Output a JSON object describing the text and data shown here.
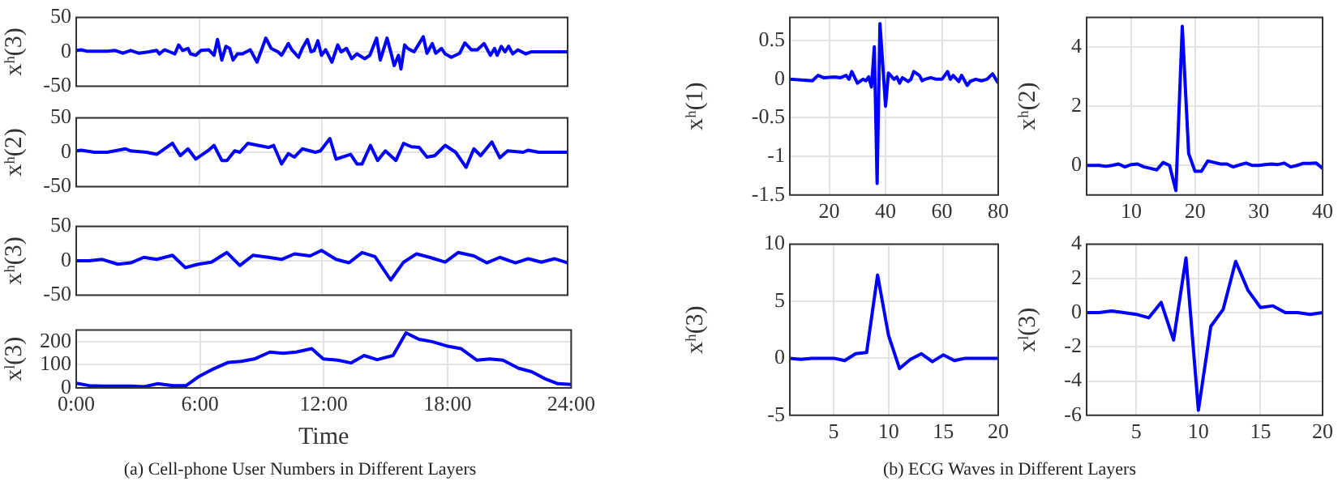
{
  "chart_data": [
    {
      "type": "line",
      "ylabel": "xʰ(3)",
      "xlim": [
        0,
        24
      ],
      "xticks": [
        {
          "value": 0,
          "label": null
        },
        {
          "value": 6,
          "label": null
        },
        {
          "value": 12,
          "label": null
        },
        {
          "value": 18,
          "label": null
        },
        {
          "value": 24,
          "label": null
        }
      ],
      "ylim": [
        -50,
        50
      ],
      "yticks": [
        -50,
        0,
        50
      ],
      "grid": true,
      "tick_labels": "y",
      "marker": "none",
      "line_style": "solid",
      "series": [
        {
          "color": "#0000ff",
          "x": [
            0,
            0.25,
            0.51,
            1.52,
            1.9,
            2.28,
            2.66,
            3.05,
            3.55,
            3.93,
            4.06,
            4.31,
            4.57,
            4.82,
            5.0,
            5.2,
            5.46,
            5.58,
            5.84,
            6.09,
            6.47,
            6.73,
            6.9,
            7.11,
            7.31,
            7.49,
            7.66,
            7.87,
            8.12,
            8.5,
            8.83,
            9.26,
            9.52,
            9.85,
            10.03,
            10.36,
            10.53,
            10.86,
            11.04,
            11.29,
            11.47,
            11.62,
            11.8,
            11.98,
            12.18,
            12.49,
            12.77,
            12.94,
            13.2,
            13.45,
            13.71,
            14.09,
            14.34,
            14.67,
            14.85,
            15.18,
            15.36,
            15.53,
            15.74,
            15.86,
            16.04,
            16.19,
            16.5,
            16.95,
            17.13,
            17.39,
            17.56,
            17.84,
            18.02,
            18.32,
            18.73,
            18.98,
            19.29,
            19.59,
            19.92,
            20.23,
            20.43,
            20.56,
            20.76,
            20.94,
            21.12,
            21.32,
            21.57,
            21.95,
            22.21,
            24
          ],
          "values": [
            2,
            3,
            1,
            1,
            2,
            -2,
            2,
            -2,
            0,
            2,
            -3,
            3,
            0,
            -3,
            10,
            2,
            5,
            -3,
            -5,
            2,
            3,
            -5,
            18,
            -12,
            8,
            5,
            -12,
            -3,
            -3,
            3,
            -15,
            20,
            5,
            0,
            -5,
            12,
            3,
            -8,
            5,
            18,
            0,
            2,
            16,
            -5,
            3,
            -15,
            10,
            0,
            5,
            -10,
            -3,
            -10,
            -5,
            20,
            -12,
            20,
            0,
            -20,
            -5,
            -25,
            10,
            5,
            0,
            22,
            -2,
            12,
            -2,
            5,
            -3,
            -8,
            -2,
            13,
            3,
            3,
            12,
            -5,
            5,
            -5,
            8,
            0,
            8,
            -3,
            3,
            -3,
            0,
            0
          ]
        }
      ]
    },
    {
      "type": "line",
      "ylabel": "xʰ(2)",
      "xlim": [
        0,
        24
      ],
      "xticks": [
        {
          "value": 0,
          "label": null
        },
        {
          "value": 6,
          "label": null
        },
        {
          "value": 12,
          "label": null
        },
        {
          "value": 18,
          "label": null
        },
        {
          "value": 24,
          "label": null
        }
      ],
      "ylim": [
        -50,
        50
      ],
      "yticks": [
        -50,
        0,
        50
      ],
      "grid": true,
      "tick_labels": "y",
      "marker": "none",
      "line_style": "solid",
      "series": [
        {
          "color": "#0000ff",
          "x": [
            0,
            0.25,
            0.89,
            1.52,
            2.41,
            2.66,
            3.43,
            3.93,
            4.7,
            5.08,
            5.46,
            5.84,
            6.47,
            6.73,
            7.11,
            7.36,
            7.74,
            7.99,
            8.38,
            8.88,
            9.39,
            9.64,
            10.03,
            10.36,
            10.66,
            11.04,
            11.68,
            11.93,
            12.39,
            12.69,
            13.4,
            13.71,
            13.96,
            14.37,
            14.72,
            15.1,
            15.61,
            15.99,
            16.37,
            16.75,
            17.13,
            17.51,
            18.02,
            18.53,
            19.04,
            19.42,
            19.75,
            20.3,
            20.69,
            21.07,
            21.83,
            22.08,
            22.59,
            24
          ],
          "values": [
            2,
            3,
            0,
            0,
            5,
            2,
            0,
            -3,
            13,
            -5,
            5,
            -10,
            3,
            10,
            -12,
            -12,
            2,
            0,
            13,
            10,
            7,
            10,
            -17,
            -2,
            -7,
            5,
            0,
            2,
            20,
            -10,
            -3,
            -17,
            -17,
            10,
            -12,
            2,
            -12,
            13,
            8,
            7,
            -7,
            -5,
            10,
            0,
            -22,
            5,
            -5,
            15,
            -8,
            2,
            0,
            3,
            0,
            0
          ]
        }
      ]
    },
    {
      "type": "line",
      "ylabel": "xʰ(3)",
      "xlim": [
        0,
        24
      ],
      "xticks": [
        {
          "value": 0,
          "label": null
        },
        {
          "value": 6,
          "label": null
        },
        {
          "value": 12,
          "label": null
        },
        {
          "value": 18,
          "label": null
        },
        {
          "value": 24,
          "label": null
        }
      ],
      "ylim": [
        -50,
        50
      ],
      "yticks": [
        -50,
        0,
        50
      ],
      "grid": true,
      "tick_labels": "y",
      "marker": "none",
      "line_style": "solid",
      "series": [
        {
          "color": "#0000ff",
          "x": [
            0,
            0.63,
            1.27,
            2.03,
            2.66,
            3.3,
            3.93,
            4.7,
            5.33,
            5.96,
            6.6,
            7.36,
            7.99,
            8.63,
            9.39,
            10.03,
            10.66,
            11.42,
            11.98,
            12.69,
            13.32,
            13.96,
            14.59,
            15.36,
            15.99,
            16.62,
            17.26,
            18.02,
            18.65,
            19.42,
            20.05,
            20.69,
            21.45,
            22.08,
            22.72,
            23.35,
            24
          ],
          "values": [
            0,
            0,
            2,
            -5,
            -3,
            5,
            2,
            8,
            -10,
            -5,
            -2,
            12,
            -7,
            8,
            5,
            2,
            10,
            7,
            15,
            2,
            -3,
            12,
            6,
            -28,
            -2,
            10,
            5,
            -2,
            12,
            7,
            -3,
            5,
            -3,
            3,
            -2,
            3,
            -3
          ]
        }
      ]
    },
    {
      "type": "line",
      "xlabel": "Time",
      "ylabel": "xˡ(3)",
      "xlim": [
        0,
        24
      ],
      "xticks": [
        {
          "value": 0,
          "label": "0:00"
        },
        {
          "value": 6,
          "label": "6:00"
        },
        {
          "value": 12,
          "label": "12:00"
        },
        {
          "value": 18,
          "label": "18:00"
        },
        {
          "value": 24,
          "label": "24:00"
        }
      ],
      "ylim": [
        0,
        250
      ],
      "yticks": [
        0,
        100,
        200
      ],
      "grid": true,
      "marker": "none",
      "line_style": "solid",
      "annotations": [
        "(a)  Cell-phone User Numbers in Different Layers"
      ],
      "series": [
        {
          "color": "#0000ff",
          "x": [
            0,
            0.63,
            1.27,
            2.03,
            2.66,
            3.3,
            3.93,
            4.7,
            5.33,
            5.96,
            6.6,
            7.36,
            7.99,
            8.63,
            9.39,
            10.03,
            10.66,
            11.42,
            11.98,
            12.69,
            13.32,
            13.96,
            14.59,
            15.36,
            15.99,
            16.62,
            17.26,
            18.02,
            18.65,
            19.42,
            20.05,
            20.69,
            21.45,
            22.08,
            22.72,
            23.35,
            24
          ],
          "values": [
            20,
            10,
            8,
            8,
            8,
            5,
            18,
            10,
            10,
            50,
            80,
            110,
            115,
            125,
            155,
            150,
            155,
            170,
            125,
            120,
            108,
            140,
            122,
            140,
            238,
            210,
            200,
            180,
            170,
            120,
            125,
            120,
            85,
            70,
            40,
            18,
            15
          ]
        }
      ]
    },
    {
      "type": "line",
      "ylabel": "xʰ(1)",
      "xlim": [
        6,
        80
      ],
      "xticks": [
        20,
        40,
        60,
        80
      ],
      "ylim": [
        -1.5,
        0.8
      ],
      "yticks": [
        -1.5,
        -1,
        -0.5,
        0,
        0.5
      ],
      "grid": true,
      "marker": "none",
      "line_style": "solid",
      "series": [
        {
          "color": "#0000ff",
          "x": [
            6,
            14,
            16,
            18,
            22,
            24,
            26,
            27,
            28,
            30,
            32,
            33,
            34,
            35,
            36,
            37,
            38,
            40,
            41,
            43,
            44,
            45,
            46,
            48,
            49,
            50,
            52,
            53,
            54,
            56,
            58,
            60,
            62,
            63,
            64,
            66,
            67,
            69,
            70,
            72,
            74,
            76,
            78,
            80
          ],
          "values": [
            0,
            -0.02,
            0.05,
            0.02,
            0.03,
            0.02,
            0.05,
            0,
            0.1,
            -0.05,
            0,
            -0.02,
            0.03,
            -0.1,
            0.42,
            -1.35,
            0.72,
            -0.35,
            0.08,
            0,
            0.03,
            -0.05,
            0.02,
            -0.03,
            0,
            0.1,
            0.05,
            -0.02,
            0,
            0.02,
            0,
            0,
            0.1,
            0,
            0.05,
            -0.03,
            0.05,
            -0.08,
            -0.03,
            0,
            -0.02,
            0,
            0.07,
            -0.05
          ]
        }
      ]
    },
    {
      "type": "line",
      "ylabel": "xʰ(2)",
      "xlim": [
        3,
        40
      ],
      "xticks": [
        10,
        20,
        30,
        40
      ],
      "ylim": [
        -1,
        5
      ],
      "yticks": [
        0,
        2,
        4
      ],
      "grid": true,
      "marker": "none",
      "line_style": "solid",
      "series": [
        {
          "color": "#0000ff",
          "x": [
            3,
            4,
            5,
            6,
            7,
            8,
            9,
            10,
            11,
            12,
            13,
            14,
            15,
            16,
            17,
            18,
            19,
            20,
            21,
            22,
            23,
            24,
            25,
            26,
            27,
            28,
            29,
            30,
            31,
            32,
            33,
            34,
            35,
            36,
            37,
            38,
            39,
            40
          ],
          "values": [
            0,
            0,
            0,
            -0.03,
            0,
            0.05,
            -0.05,
            0.03,
            0.05,
            -0.05,
            -0.1,
            -0.15,
            0.1,
            0,
            -0.85,
            4.7,
            0.4,
            -0.2,
            -0.2,
            0.15,
            0.1,
            0.05,
            0.05,
            -0.05,
            0.02,
            0.08,
            0,
            0,
            0.03,
            0.05,
            0.03,
            0.08,
            -0.05,
            0,
            0.07,
            0.07,
            0.08,
            -0.1
          ]
        }
      ]
    },
    {
      "type": "line",
      "ylabel": "xʰ(3)",
      "xlim": [
        1,
        20
      ],
      "xticks": [
        5,
        10,
        15,
        20
      ],
      "ylim": [
        -5,
        10
      ],
      "yticks": [
        -5,
        0,
        5,
        10
      ],
      "grid": true,
      "marker": "none",
      "line_style": "solid",
      "series": [
        {
          "color": "#0000ff",
          "x": [
            1,
            2,
            3,
            4,
            5,
            6,
            7,
            8,
            9,
            10,
            11,
            12,
            13,
            14,
            15,
            16,
            17,
            18,
            19,
            20
          ],
          "values": [
            0,
            -0.1,
            0,
            0,
            0,
            -0.2,
            0.4,
            0.5,
            7.3,
            2,
            -0.9,
            -0.1,
            0.4,
            -0.3,
            0.3,
            -0.2,
            0,
            0,
            0,
            0
          ]
        }
      ]
    },
    {
      "type": "line",
      "ylabel": "xˡ(3)",
      "xlim": [
        1,
        20
      ],
      "xticks": [
        5,
        10,
        15,
        20
      ],
      "ylim": [
        -6,
        4
      ],
      "yticks": [
        -6,
        -4,
        -2,
        0,
        2,
        4
      ],
      "grid": true,
      "marker": "none",
      "line_style": "solid",
      "annotations": [
        "(b)  ECG Waves in Different Layers"
      ],
      "series": [
        {
          "color": "#0000ff",
          "x": [
            1,
            2,
            3,
            4,
            5,
            6,
            7,
            8,
            9,
            10,
            11,
            12,
            13,
            14,
            15,
            16,
            17,
            18,
            19,
            20
          ],
          "values": [
            0,
            0,
            0.1,
            0,
            -0.1,
            -0.3,
            0.6,
            -1.6,
            3.2,
            -5.7,
            -0.8,
            0.2,
            3,
            1.3,
            0.3,
            0.4,
            0,
            0,
            -0.1,
            0
          ]
        }
      ]
    }
  ]
}
